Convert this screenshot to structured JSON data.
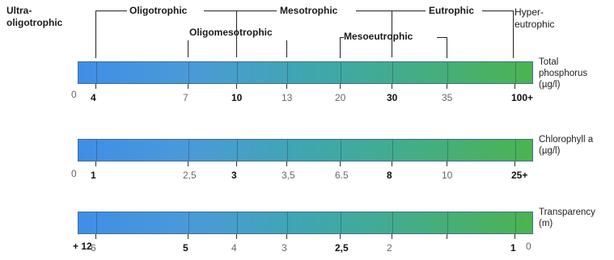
{
  "categories": {
    "ultra": "Ultra-\noligotrophic",
    "oligotrophic": "Oligotrophic",
    "mesotrophic": "Mesotrophic",
    "eutrophic": "Eutrophic",
    "hyper": "Hyper-\neutrophic",
    "oligomesotrophic": "Oligomesotrophic",
    "mesoeutrophic": "Mesoeutrophic"
  },
  "scales": [
    {
      "label": "Total\nphosphorus\n(µg/l)",
      "ticks": [
        "0",
        "4",
        "7",
        "10",
        "13",
        "20",
        "30",
        "35",
        "100+"
      ],
      "bold": [
        false,
        true,
        false,
        true,
        false,
        false,
        true,
        false,
        true
      ]
    },
    {
      "label": "Chlorophyll a\n(µg/l)",
      "ticks": [
        "0",
        "1",
        "2,5",
        "3",
        "3,5",
        "6.5",
        "8",
        "10",
        "25+"
      ],
      "bold": [
        false,
        true,
        false,
        true,
        false,
        false,
        true,
        false,
        true
      ]
    },
    {
      "label": "Transparency\n(m)",
      "ticks": [
        "+ 12",
        "6",
        "5",
        "4",
        "3",
        "2,5",
        "2",
        "1",
        "0"
      ],
      "bold": [
        true,
        false,
        true,
        false,
        false,
        true,
        false,
        true,
        false
      ]
    }
  ]
}
